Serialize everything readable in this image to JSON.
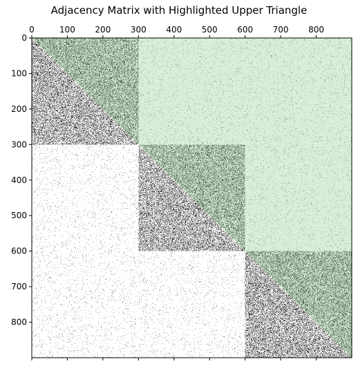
{
  "chart_data": {
    "type": "heatmap",
    "title": "Adjacency Matrix with Highlighted Upper Triangle",
    "xlabel": "",
    "ylabel": "",
    "n": 900,
    "x_axis_position": "top",
    "xlim": [
      0,
      900
    ],
    "ylim": [
      900,
      0
    ],
    "x_ticks": [
      0,
      100,
      200,
      300,
      400,
      500,
      600,
      700,
      800
    ],
    "y_ticks": [
      0,
      100,
      200,
      300,
      400,
      500,
      600,
      700,
      800
    ],
    "grid": false,
    "communities": [
      {
        "start": 0,
        "end": 300
      },
      {
        "start": 300,
        "end": 600
      },
      {
        "start": 600,
        "end": 900
      }
    ],
    "edge_density": {
      "within_community": 0.3,
      "between_communities": 0.02
    },
    "highlight": {
      "region": "upper-triangle",
      "color": "#d8eed8",
      "alpha": 1.0
    },
    "colors": {
      "edge": "#000000",
      "background": "#ffffff"
    }
  }
}
